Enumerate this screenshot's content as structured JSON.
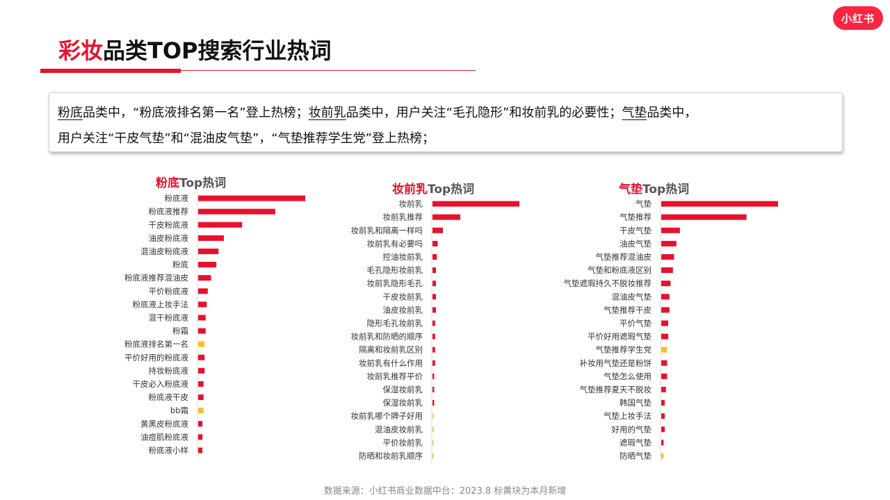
{
  "brand": {
    "logo_text": "小红书",
    "color": "#ff2442"
  },
  "header": {
    "title_highlight": "彩妆",
    "title_rest": "品类TOP搜索行业热词"
  },
  "summary": {
    "p1": "粉底",
    "t1": "品类中，“粉底液排名第一名”登上热榜；",
    "p2": "妆前乳",
    "t2": "品类中，用户关注“毛孔隐形”和妆前乳的必要性；",
    "p3": "气垫",
    "t3": "品类中，",
    "t4": "用户关注“干皮气垫”和“混油皮气垫”，“气垫推荐学生党”登上热榜；"
  },
  "colors": {
    "bar_red": "#e8112d",
    "bar_new": "#f5c02a",
    "title_red": "#e8112d"
  },
  "chart_data": [
    {
      "type": "bar",
      "orientation": "horizontal",
      "title_highlight": "粉底",
      "title_rest": "Top热词",
      "categories": [
        "粉底液",
        "粉底液推荐",
        "干皮粉底液",
        "油皮粉底液",
        "混油皮粉底液",
        "粉底",
        "粉底液推荐混油皮",
        "平价粉底液",
        "粉底液上妆手法",
        "混干粉底液",
        "粉霜",
        "粉底液排名第一名",
        "平价好用的粉底液",
        "持妆粉底液",
        "干皮必入粉底液",
        "粉底液干皮",
        "bb霜",
        "黄黑皮粉底液",
        "油痘肌粉底液",
        "粉底液小样"
      ],
      "values": [
        100,
        72,
        41,
        24,
        19,
        17,
        12,
        9,
        8,
        7,
        7,
        6,
        6,
        6,
        5,
        5,
        5,
        4,
        4,
        4
      ],
      "new_this_month": [
        false,
        false,
        false,
        false,
        false,
        false,
        false,
        false,
        false,
        false,
        false,
        true,
        false,
        false,
        false,
        false,
        true,
        false,
        false,
        false
      ],
      "axis_max": 100
    },
    {
      "type": "bar",
      "orientation": "horizontal",
      "title_highlight": "妆前乳",
      "title_rest": "Top热词",
      "categories": [
        "妆前乳",
        "妆前乳推荐",
        "妆前乳和隔离一样吗",
        "妆前乳有必要吗",
        "控油妆前乳",
        "毛孔隐形妆前乳",
        "妆前乳隐形毛孔",
        "干皮妆前乳",
        "油皮妆前乳",
        "隐形毛孔妆前乳",
        "妆前乳和防晒的顺序",
        "隔离和妆前乳区别",
        "妆前乳有什么作用",
        "妆前乳推荐平价",
        "保湿妆前乳",
        "保湿妆前乳",
        "妆前乳哪个牌子好用",
        "混油皮妆前乳",
        "平价妆前乳",
        "防晒和妆前乳顺序"
      ],
      "values": [
        100,
        32,
        12,
        6,
        5,
        4,
        4,
        4,
        4,
        3,
        3,
        3,
        3,
        2,
        2,
        2,
        1,
        1,
        1,
        1
      ],
      "new_this_month": [
        false,
        false,
        false,
        false,
        false,
        false,
        false,
        false,
        false,
        false,
        false,
        false,
        false,
        false,
        false,
        false,
        true,
        true,
        true,
        true
      ],
      "axis_max": 100
    },
    {
      "type": "bar",
      "orientation": "horizontal",
      "title_highlight": "气垫",
      "title_rest": "Top热词",
      "categories": [
        "气垫",
        "气垫推荐",
        "干皮气垫",
        "油皮气垫",
        "气垫推荐混油皮",
        "气垫和粉底液区别",
        "气垫遮瑕持久不脱妆推荐",
        "混油皮气垫",
        "气垫推荐干皮",
        "平价气垫",
        "平价好用遮瑕气垫",
        "气垫推荐学生党",
        "补妆用气垫还是粉饼",
        "气垫怎么使用",
        "气垫推荐夏天不脱妆",
        "韩国气垫",
        "气垫上妆手法",
        "好用的气垫",
        "遮瑕气垫",
        "防晒气垫"
      ],
      "values": [
        100,
        73,
        16,
        13,
        11,
        10,
        8,
        7,
        7,
        6,
        6,
        5,
        5,
        5,
        4,
        3,
        3,
        3,
        2,
        2
      ],
      "new_this_month": [
        false,
        false,
        false,
        false,
        false,
        false,
        false,
        false,
        false,
        false,
        false,
        true,
        false,
        false,
        false,
        false,
        false,
        false,
        false,
        true
      ],
      "axis_max": 100
    }
  ],
  "footer": {
    "text": "数据来源：小红书商业数据中台：2023.8 标黄块为本月新增"
  }
}
